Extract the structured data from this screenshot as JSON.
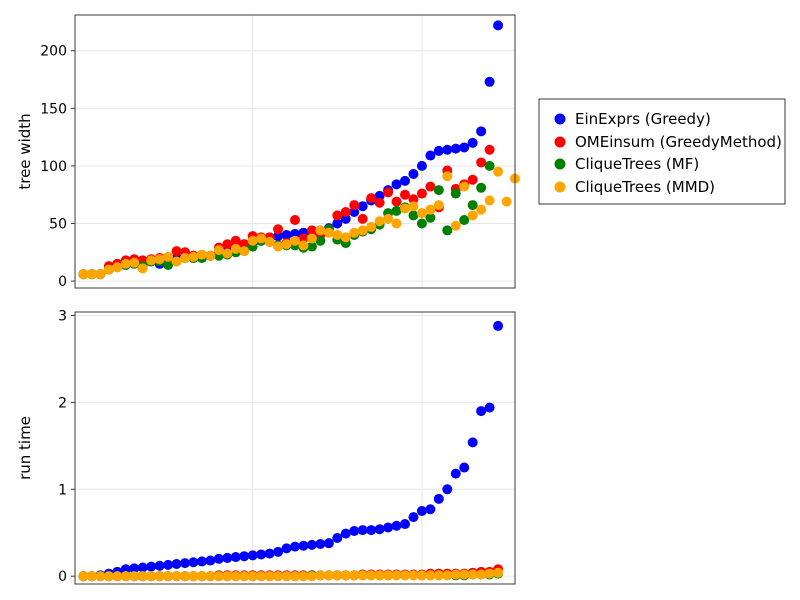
{
  "chart_data": [
    {
      "type": "scatter",
      "ylabel": "tree width",
      "xlabel": "",
      "ylim": [
        -6,
        231
      ],
      "xlim": [
        -1,
        51
      ],
      "yticks": [
        0,
        50,
        100,
        150,
        200
      ],
      "xgrid": [
        20,
        40
      ],
      "series": [
        {
          "name": "EinExprs (Greedy)",
          "color": "#0000ff",
          "values": [
            6,
            6,
            6,
            10,
            13,
            14,
            16,
            17,
            17,
            15,
            19,
            20,
            21,
            22,
            22,
            22,
            24,
            27,
            30,
            32,
            33,
            35,
            37,
            39,
            40,
            41,
            42,
            43,
            44,
            46,
            50,
            54,
            60,
            65,
            70,
            74,
            79,
            84,
            87,
            93,
            100,
            109,
            113,
            114,
            115,
            116,
            120,
            130,
            173,
            222
          ]
        },
        {
          "name": "OMEinsum (GreedyMethod)",
          "color": "#ff0000",
          "values": [
            6,
            6,
            6,
            13,
            15,
            18,
            19,
            18,
            19,
            20,
            16,
            26,
            25,
            22,
            22,
            22,
            29,
            32,
            35,
            32,
            39,
            38,
            38,
            45,
            33,
            53,
            37,
            44,
            40,
            45,
            57,
            60,
            66,
            54,
            72,
            68,
            77,
            69,
            75,
            71,
            76,
            82,
            64,
            96,
            80,
            84,
            88,
            103,
            114
          ]
        },
        {
          "name": "CliqueTrees (MF)",
          "color": "#008000",
          "values": [
            6,
            6,
            6,
            10,
            12,
            14,
            15,
            13,
            17,
            17,
            14,
            17,
            20,
            20,
            20,
            22,
            22,
            23,
            25,
            26,
            30,
            35,
            34,
            31,
            31,
            31,
            29,
            30,
            35,
            45,
            36,
            33,
            40,
            43,
            45,
            49,
            59,
            61,
            64,
            57,
            50,
            55,
            79,
            44,
            76,
            53,
            66,
            81,
            100
          ]
        },
        {
          "name": "CliqueTrees (MMD)",
          "color": "#ffa500",
          "values": [
            6,
            6,
            6,
            10,
            12,
            15,
            16,
            11,
            18,
            19,
            21,
            17,
            20,
            21,
            23,
            22,
            27,
            24,
            28,
            26,
            35,
            37,
            34,
            30,
            32,
            35,
            31,
            37,
            44,
            42,
            40,
            38,
            42,
            44,
            47,
            52,
            54,
            50,
            63,
            65,
            59,
            62,
            66,
            91,
            48,
            82,
            57,
            62,
            70,
            95,
            69,
            89
          ]
        }
      ]
    },
    {
      "type": "scatter",
      "ylabel": "run time",
      "xlabel": "",
      "ylim": [
        -0.09,
        3.04
      ],
      "xlim": [
        -1,
        51
      ],
      "yticks": [
        0,
        1,
        2,
        3
      ],
      "xgrid": [
        20,
        40
      ],
      "series": [
        {
          "name": "EinExprs (Greedy)",
          "color": "#0000ff",
          "values": [
            0,
            0,
            0.01,
            0.03,
            0.05,
            0.08,
            0.09,
            0.1,
            0.11,
            0.12,
            0.13,
            0.14,
            0.15,
            0.16,
            0.17,
            0.18,
            0.2,
            0.21,
            0.22,
            0.23,
            0.24,
            0.25,
            0.26,
            0.28,
            0.32,
            0.34,
            0.35,
            0.36,
            0.37,
            0.38,
            0.44,
            0.49,
            0.52,
            0.53,
            0.53,
            0.54,
            0.56,
            0.58,
            0.6,
            0.68,
            0.75,
            0.77,
            0.89,
            1.0,
            1.18,
            1.25,
            1.54,
            1.9,
            1.94,
            2.88
          ]
        },
        {
          "name": "OMEinsum (GreedyMethod)",
          "color": "#ff0000",
          "values": [
            0,
            0,
            0,
            0,
            0,
            0,
            0,
            0,
            0,
            0,
            0,
            0,
            0,
            0,
            0,
            0,
            0.01,
            0.01,
            0.01,
            0.01,
            0.01,
            0.01,
            0.01,
            0.01,
            0.01,
            0.01,
            0.01,
            0.01,
            0.01,
            0.01,
            0.01,
            0.01,
            0.01,
            0.02,
            0.02,
            0.02,
            0.02,
            0.02,
            0.02,
            0.02,
            0.02,
            0.03,
            0.03,
            0.03,
            0.03,
            0.03,
            0.04,
            0.05,
            0.05,
            0.08
          ]
        },
        {
          "name": "CliqueTrees (MF)",
          "color": "#008000",
          "values": [
            0,
            0,
            0,
            0,
            0,
            0,
            0,
            0,
            0,
            0,
            0,
            0,
            0,
            0,
            0,
            0,
            0,
            0,
            0,
            0,
            0,
            0,
            0,
            0,
            0,
            0,
            0,
            0.01,
            0.01,
            0.01,
            0.01,
            0.01,
            0.01,
            0.01,
            0.01,
            0.01,
            0.01,
            0.01,
            0.01,
            0.01,
            0.01,
            0.01,
            0.01,
            0.01,
            0.01,
            0.01,
            0.02,
            0.02,
            0.02,
            0.03
          ]
        },
        {
          "name": "CliqueTrees (MMD)",
          "color": "#ffa500",
          "values": [
            0,
            0,
            0,
            0,
            0,
            0,
            0,
            0,
            0,
            0,
            0,
            0,
            0,
            0,
            0,
            0,
            0,
            0,
            0,
            0,
            0,
            0,
            0,
            0,
            0,
            0,
            0,
            0,
            0.01,
            0.01,
            0.01,
            0.01,
            0.01,
            0.01,
            0.01,
            0.01,
            0.01,
            0.01,
            0.01,
            0.01,
            0.01,
            0.01,
            0.01,
            0.01,
            0.02,
            0.02,
            0.02,
            0.02,
            0.03,
            0.04
          ]
        }
      ]
    }
  ],
  "legend": {
    "placement": "right",
    "items": [
      {
        "label": "EinExprs (Greedy)",
        "color": "#0000ff"
      },
      {
        "label": "OMEinsum (GreedyMethod)",
        "color": "#ff0000"
      },
      {
        "label": "CliqueTrees (MF)",
        "color": "#008000"
      },
      {
        "label": "CliqueTrees (MMD)",
        "color": "#ffa500"
      }
    ]
  }
}
